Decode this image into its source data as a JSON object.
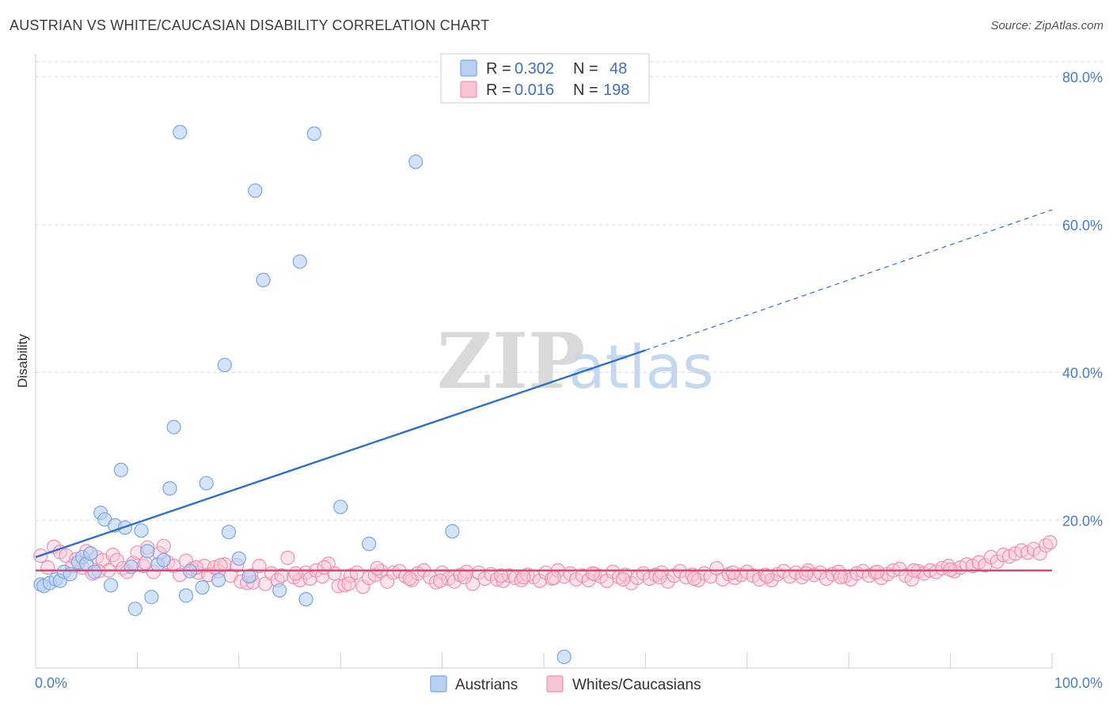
{
  "title": "AUSTRIAN VS WHITE/CAUCASIAN DISABILITY CORRELATION CHART",
  "source": "Source: ZipAtlas.com",
  "watermark": {
    "zip": "ZIP",
    "atlas": "atlas"
  },
  "colors": {
    "blue": "#7aa7e0",
    "blue_fill": "#b8d1f3",
    "blue_line": "#2f6fcc",
    "pink": "#ef8fb0",
    "pink_fill": "#f8c5d6",
    "pink_line": "#e0457b",
    "grid": "#d9d9d9",
    "tick_label": "#4a7cc9"
  },
  "legend": {
    "rows": [
      {
        "r_label": "R =",
        "r_value": "0.302",
        "n_label": "N =",
        "n_value": "48"
      },
      {
        "r_label": "R =",
        "r_value": "0.016",
        "n_label": "N =",
        "n_value": "198"
      }
    ]
  },
  "chart_data": {
    "type": "scatter",
    "xlabel": "",
    "ylabel": "Disability",
    "xlim": [
      0,
      100
    ],
    "ylim": [
      0,
      82
    ],
    "x_tick_labels": [
      "0.0%",
      "100.0%"
    ],
    "y_ticks": [
      20,
      40,
      60,
      80
    ],
    "y_tick_labels": [
      "20.0%",
      "40.0%",
      "60.0%",
      "80.0%"
    ],
    "grid": "horizontal dashed",
    "legend_position": "top-center",
    "series": [
      {
        "name": "Austrians",
        "color": "#7aa7e0",
        "trend": {
          "x0": 0,
          "y0": 15.0,
          "x1": 60,
          "y1": 43.0,
          "dashed_to_x": 100,
          "dashed_to_y": 62.0
        },
        "points": [
          [
            0.5,
            11.3
          ],
          [
            0.8,
            11.1
          ],
          [
            1.4,
            11.5
          ],
          [
            2.0,
            12.0
          ],
          [
            2.4,
            11.8
          ],
          [
            2.8,
            13.0
          ],
          [
            3.4,
            12.7
          ],
          [
            4.2,
            14.3
          ],
          [
            4.6,
            15.0
          ],
          [
            5.0,
            14.1
          ],
          [
            5.4,
            15.5
          ],
          [
            5.8,
            13.0
          ],
          [
            6.4,
            21.0
          ],
          [
            6.8,
            20.1
          ],
          [
            7.4,
            11.2
          ],
          [
            7.8,
            19.3
          ],
          [
            8.4,
            26.8
          ],
          [
            8.8,
            19.0
          ],
          [
            9.4,
            13.7
          ],
          [
            9.8,
            8.0
          ],
          [
            10.4,
            18.6
          ],
          [
            11.0,
            15.8
          ],
          [
            11.4,
            9.6
          ],
          [
            12.0,
            14.0
          ],
          [
            12.6,
            14.6
          ],
          [
            13.2,
            24.3
          ],
          [
            13.6,
            32.6
          ],
          [
            14.2,
            72.5
          ],
          [
            14.8,
            9.8
          ],
          [
            15.2,
            13.1
          ],
          [
            16.4,
            10.9
          ],
          [
            16.8,
            25.0
          ],
          [
            18.0,
            11.9
          ],
          [
            18.6,
            41.0
          ],
          [
            19.0,
            18.4
          ],
          [
            20.0,
            14.8
          ],
          [
            21.0,
            12.4
          ],
          [
            21.6,
            64.6
          ],
          [
            22.4,
            52.5
          ],
          [
            24.0,
            10.5
          ],
          [
            26.0,
            55.0
          ],
          [
            26.6,
            9.3
          ],
          [
            27.4,
            72.3
          ],
          [
            30.0,
            21.8
          ],
          [
            32.8,
            16.8
          ],
          [
            37.4,
            68.5
          ],
          [
            41.0,
            18.5
          ],
          [
            52.0,
            1.5
          ]
        ]
      },
      {
        "name": "Whites/Caucasians",
        "color": "#ef8fb0",
        "trend": {
          "x0": 0,
          "y0": 13.2,
          "x1": 100,
          "y1": 13.2
        },
        "points": [
          [
            0.5,
            15.2
          ],
          [
            1.2,
            13.6
          ],
          [
            1.8,
            16.4
          ],
          [
            2.4,
            15.7
          ],
          [
            3.0,
            15.2
          ],
          [
            3.6,
            13.8
          ],
          [
            4.0,
            14.7
          ],
          [
            4.6,
            13.6
          ],
          [
            5.0,
            15.8
          ],
          [
            5.6,
            12.8
          ],
          [
            6.0,
            15.0
          ],
          [
            6.6,
            14.6
          ],
          [
            7.2,
            13.2
          ],
          [
            7.6,
            15.3
          ],
          [
            8.0,
            14.6
          ],
          [
            8.6,
            13.5
          ],
          [
            9.0,
            13.0
          ],
          [
            9.6,
            14.2
          ],
          [
            10.0,
            15.6
          ],
          [
            10.6,
            13.8
          ],
          [
            11.0,
            16.3
          ],
          [
            11.6,
            13.0
          ],
          [
            12.2,
            15.5
          ],
          [
            12.6,
            16.5
          ],
          [
            13.0,
            14.3
          ],
          [
            13.6,
            13.8
          ],
          [
            14.2,
            12.6
          ],
          [
            14.8,
            14.5
          ],
          [
            15.4,
            13.4
          ],
          [
            16.0,
            12.9
          ],
          [
            16.6,
            13.8
          ],
          [
            17.0,
            12.6
          ],
          [
            17.6,
            13.6
          ],
          [
            18.0,
            13.1
          ],
          [
            18.6,
            14.0
          ],
          [
            19.2,
            12.5
          ],
          [
            19.8,
            13.9
          ],
          [
            20.2,
            11.7
          ],
          [
            20.8,
            11.5
          ],
          [
            21.4,
            11.6
          ],
          [
            22.0,
            13.8
          ],
          [
            22.6,
            11.4
          ],
          [
            23.2,
            12.8
          ],
          [
            23.8,
            11.9
          ],
          [
            24.2,
            12.5
          ],
          [
            24.8,
            14.9
          ],
          [
            25.4,
            12.3
          ],
          [
            26.0,
            11.9
          ],
          [
            26.6,
            12.9
          ],
          [
            27.0,
            12.1
          ],
          [
            27.6,
            13.2
          ],
          [
            28.2,
            12.4
          ],
          [
            28.8,
            14.1
          ],
          [
            29.4,
            12.8
          ],
          [
            29.8,
            11.1
          ],
          [
            30.4,
            11.2
          ],
          [
            31.0,
            12.5
          ],
          [
            31.6,
            12.9
          ],
          [
            32.2,
            11.0
          ],
          [
            32.8,
            12.2
          ],
          [
            33.4,
            12.6
          ],
          [
            34.0,
            13.1
          ],
          [
            34.6,
            11.7
          ],
          [
            35.2,
            12.9
          ],
          [
            35.8,
            13.1
          ],
          [
            36.4,
            12.4
          ],
          [
            37.0,
            11.9
          ],
          [
            37.6,
            12.8
          ],
          [
            38.2,
            13.2
          ],
          [
            38.8,
            12.3
          ],
          [
            39.4,
            11.6
          ],
          [
            40.0,
            12.9
          ],
          [
            40.6,
            12.1
          ],
          [
            41.2,
            11.7
          ],
          [
            41.8,
            12.6
          ],
          [
            42.4,
            13.0
          ],
          [
            43.0,
            11.4
          ],
          [
            43.6,
            12.9
          ],
          [
            44.2,
            12.1
          ],
          [
            44.8,
            12.7
          ],
          [
            45.4,
            12.0
          ],
          [
            46.0,
            11.8
          ],
          [
            46.6,
            12.5
          ],
          [
            47.2,
            12.2
          ],
          [
            47.8,
            11.9
          ],
          [
            48.4,
            12.6
          ],
          [
            49.0,
            12.3
          ],
          [
            49.6,
            11.8
          ],
          [
            50.2,
            12.9
          ],
          [
            50.8,
            12.1
          ],
          [
            51.4,
            13.2
          ],
          [
            52.0,
            12.4
          ],
          [
            52.6,
            12.8
          ],
          [
            53.2,
            12.0
          ],
          [
            53.8,
            12.5
          ],
          [
            54.4,
            11.9
          ],
          [
            55.0,
            12.7
          ],
          [
            55.6,
            12.4
          ],
          [
            56.2,
            11.8
          ],
          [
            56.8,
            13.0
          ],
          [
            57.4,
            12.3
          ],
          [
            58.0,
            12.6
          ],
          [
            58.6,
            11.5
          ],
          [
            59.2,
            12.2
          ],
          [
            59.8,
            12.8
          ],
          [
            60.4,
            12.1
          ],
          [
            61.0,
            12.6
          ],
          [
            61.6,
            12.9
          ],
          [
            62.2,
            11.7
          ],
          [
            62.8,
            12.5
          ],
          [
            63.4,
            13.1
          ],
          [
            64.0,
            12.3
          ],
          [
            64.6,
            12.6
          ],
          [
            65.2,
            11.9
          ],
          [
            65.8,
            12.8
          ],
          [
            66.4,
            12.4
          ],
          [
            67.0,
            13.5
          ],
          [
            67.6,
            12.0
          ],
          [
            68.2,
            12.7
          ],
          [
            68.8,
            12.2
          ],
          [
            69.4,
            12.6
          ],
          [
            70.0,
            13.0
          ],
          [
            70.6,
            12.5
          ],
          [
            71.2,
            12.0
          ],
          [
            71.8,
            12.6
          ],
          [
            72.4,
            11.9
          ],
          [
            73.0,
            12.7
          ],
          [
            73.6,
            13.1
          ],
          [
            74.2,
            12.4
          ],
          [
            74.8,
            12.9
          ],
          [
            75.4,
            12.3
          ],
          [
            76.0,
            13.2
          ],
          [
            76.6,
            12.6
          ],
          [
            77.2,
            12.9
          ],
          [
            77.8,
            12.1
          ],
          [
            78.4,
            12.7
          ],
          [
            79.0,
            13.0
          ],
          [
            79.6,
            12.4
          ],
          [
            80.2,
            12.0
          ],
          [
            80.8,
            12.8
          ],
          [
            81.4,
            13.1
          ],
          [
            82.0,
            12.5
          ],
          [
            82.6,
            12.9
          ],
          [
            83.2,
            12.2
          ],
          [
            83.8,
            12.7
          ],
          [
            84.4,
            13.2
          ],
          [
            85.0,
            13.4
          ],
          [
            85.6,
            12.5
          ],
          [
            86.2,
            12.0
          ],
          [
            86.8,
            13.1
          ],
          [
            87.4,
            12.8
          ],
          [
            88.0,
            13.2
          ],
          [
            88.6,
            13.0
          ],
          [
            89.2,
            13.5
          ],
          [
            89.8,
            13.8
          ],
          [
            90.4,
            13.1
          ],
          [
            91.0,
            13.6
          ],
          [
            91.6,
            14.0
          ],
          [
            92.2,
            13.8
          ],
          [
            92.8,
            14.3
          ],
          [
            93.4,
            13.9
          ],
          [
            94.0,
            15.0
          ],
          [
            94.6,
            14.4
          ],
          [
            95.2,
            15.3
          ],
          [
            95.8,
            15.1
          ],
          [
            96.4,
            15.5
          ],
          [
            97.0,
            15.9
          ],
          [
            97.6,
            15.6
          ],
          [
            98.2,
            16.1
          ],
          [
            98.8,
            15.5
          ],
          [
            99.4,
            16.6
          ],
          [
            99.8,
            17.0
          ],
          [
            6.2,
            13.1
          ],
          [
            10.8,
            14.2
          ],
          [
            15.8,
            13.6
          ],
          [
            18.2,
            13.9
          ],
          [
            21.2,
            12.5
          ],
          [
            25.6,
            12.8
          ],
          [
            28.4,
            13.6
          ],
          [
            30.8,
            11.4
          ],
          [
            33.6,
            13.5
          ],
          [
            36.8,
            12.1
          ],
          [
            39.8,
            11.8
          ],
          [
            42.2,
            12.3
          ],
          [
            45.8,
            12.5
          ],
          [
            48.0,
            12.3
          ],
          [
            51.0,
            12.2
          ],
          [
            54.8,
            12.8
          ],
          [
            57.8,
            12.0
          ],
          [
            61.4,
            12.3
          ],
          [
            64.8,
            12.1
          ],
          [
            68.6,
            12.9
          ],
          [
            72.0,
            12.4
          ],
          [
            75.8,
            12.8
          ],
          [
            79.2,
            12.3
          ],
          [
            82.8,
            13.0
          ],
          [
            86.4,
            13.2
          ],
          [
            90.0,
            13.3
          ]
        ]
      }
    ]
  }
}
